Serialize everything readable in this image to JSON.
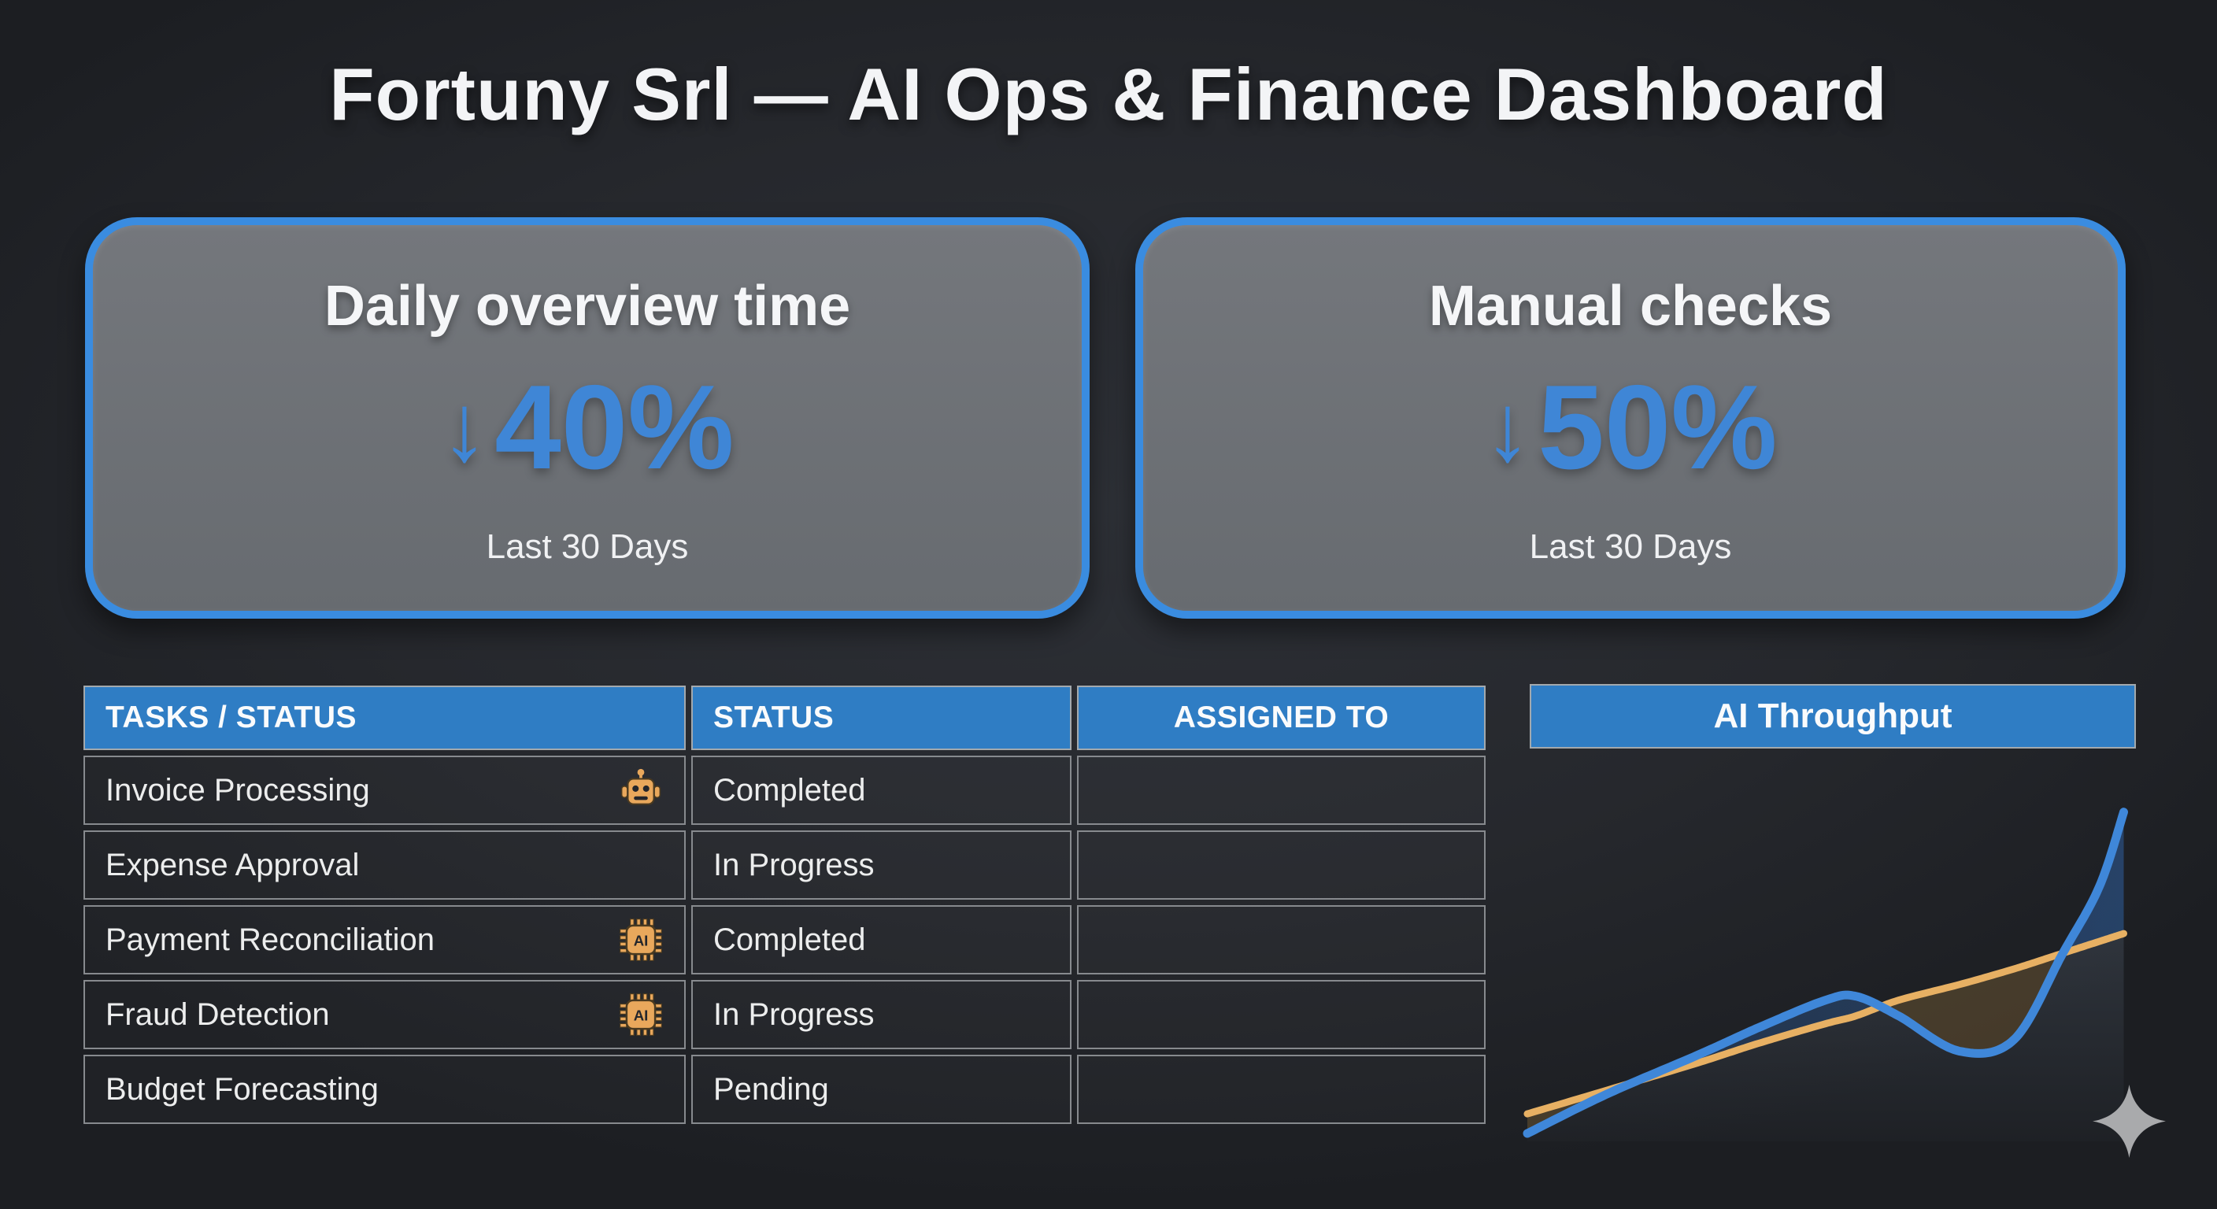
{
  "page": {
    "title": "Fortuny Srl — AI Ops & Finance Dashboard"
  },
  "colors": {
    "background": "#26282d",
    "accent_blue": "#3f86d6",
    "card_border_blue": "#3a8ce0",
    "card_gray": "#6d7075",
    "header_blue": "#2f7dc4",
    "grid_line": "#878a8e",
    "text_white": "#f3f4f6",
    "icon_orange": "#e9a85c",
    "chart_line_blue": "#3f87d9",
    "chart_line_orange": "#e7b063",
    "star_gray": "#a9aaac"
  },
  "cards": [
    {
      "title": "Daily overview time",
      "arrow": "↓",
      "value": "40%",
      "period": "Last 30 Days"
    },
    {
      "title": "Manual checks",
      "arrow": "↓",
      "value": "50%",
      "period": "Last 30 Days"
    }
  ],
  "table": {
    "columns": [
      "TASKS / STATUS",
      "STATUS",
      "ASSIGNED TO"
    ],
    "rows": [
      {
        "task": "Invoice Processing",
        "icon": "robot-icon",
        "status": "Completed",
        "assigned_to": ""
      },
      {
        "task": "Expense Approval",
        "icon": null,
        "status": "In Progress",
        "assigned_to": ""
      },
      {
        "task": "Payment Reconciliation",
        "icon": "ai-chip-icon",
        "status": "Completed",
        "assigned_to": ""
      },
      {
        "task": "Fraud Detection",
        "icon": "ai-chip-icon",
        "status": "In Progress",
        "assigned_to": ""
      },
      {
        "task": "Budget Forecasting",
        "icon": null,
        "status": "Pending",
        "assigned_to": ""
      }
    ]
  },
  "chart_panel": {
    "title": "AI Throughput"
  },
  "chart_data": {
    "type": "line",
    "title": "AI Throughput",
    "note": "No axes, ticks or data labels are shown in the image; values are estimated relative heights (0-100% of plot height) read from the curves.",
    "x_units": "relative position 0-100 (left to right)",
    "y_units": "relative height 0-100 (bottom to top)",
    "x": [
      0,
      13,
      28,
      38,
      49,
      54,
      61,
      71,
      80,
      88,
      94,
      98
    ],
    "series": [
      {
        "name": "AI throughput (blue curve)",
        "color": "#3f87d9",
        "values": [
          2,
          12,
          22,
          29,
          36,
          37,
          32,
          23,
          26,
          48,
          65,
          84
        ]
      },
      {
        "name": "Baseline trend (orange line)",
        "color": "#e7b063",
        "values": [
          7,
          13,
          20,
          25,
          30,
          32,
          36,
          40,
          44,
          48,
          51,
          53
        ]
      }
    ],
    "legend": "none shown",
    "grid": false,
    "fills": "navy shading where blue is above orange; tan shading where orange is above blue; faint wash below curves"
  },
  "decor": {
    "sparkle": "four-point star, bottom right"
  }
}
